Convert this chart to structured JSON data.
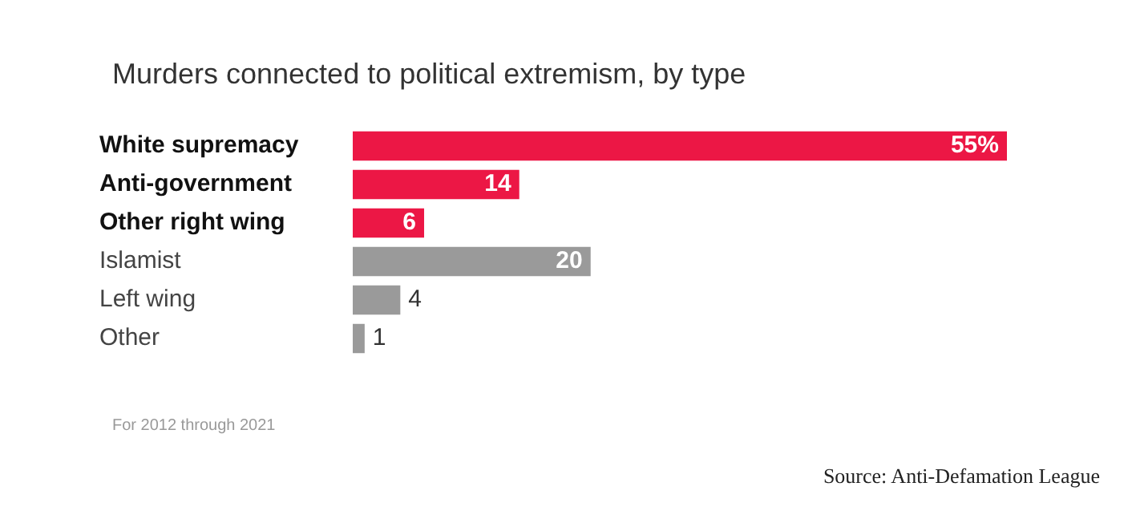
{
  "chart_data": {
    "type": "bar",
    "orientation": "horizontal",
    "title": "Murders connected to political extremism, by type",
    "categories": [
      "White supremacy",
      "Anti-government",
      "Other right wing",
      "Islamist",
      "Left wing",
      "Other"
    ],
    "values": [
      55,
      14,
      6,
      20,
      4,
      1
    ],
    "value_labels": [
      "55%",
      "14",
      "6",
      "20",
      "4",
      "1"
    ],
    "colors": [
      "#ec1745",
      "#ec1745",
      "#ec1745",
      "#9a9a9a",
      "#9a9a9a",
      "#9a9a9a"
    ],
    "xlim": [
      0,
      55
    ],
    "annotations": [
      "For 2012 through 2021",
      "Source: Anti-Defamation League"
    ]
  }
}
